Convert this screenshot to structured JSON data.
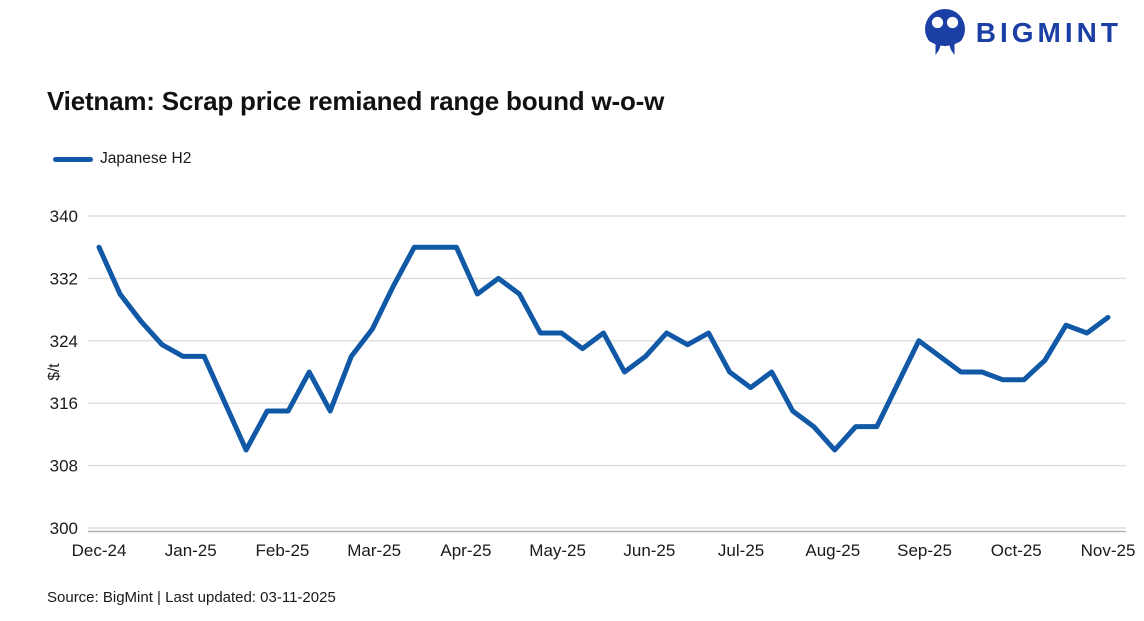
{
  "brand": {
    "name": "BIGMINT",
    "color": "#1b3fa5"
  },
  "header": {
    "title": "Vietnam: Scrap price remianed range bound w-o-w"
  },
  "legend": {
    "label": "Japanese H2"
  },
  "footer": {
    "source_note": "Source: BigMint | Last updated: 03-11-2025"
  },
  "chart_data": {
    "type": "line",
    "title": "Vietnam: Scrap price remianed range bound w-o-w",
    "ylabel": "$/t",
    "xlabel": "",
    "ylim": [
      300,
      340
    ],
    "yticks": [
      340,
      332,
      324,
      316,
      308,
      300
    ],
    "x_tick_labels": [
      "Dec-24",
      "Jan-25",
      "Feb-25",
      "Mar-25",
      "Apr-25",
      "May-25",
      "Jun-25",
      "Jul-25",
      "Aug-25",
      "Sep-25",
      "Oct-25",
      "Nov-25"
    ],
    "grid": "horizontal",
    "grid_color": "#dcdcdc",
    "axis_color": "#b3b3b3",
    "text_color": "#1a1a1a",
    "legend_position": "top-left",
    "series": [
      {
        "name": "Japanese H2",
        "color": "#1159a6",
        "frequency": "weekly",
        "values": [
          336,
          330,
          326.5,
          323.5,
          322,
          322,
          316,
          310,
          315,
          315,
          320,
          315,
          322,
          325.5,
          331,
          336,
          336,
          336,
          330,
          332,
          330,
          325,
          325,
          323,
          325,
          320,
          322,
          325,
          323.5,
          325,
          320,
          318,
          320,
          315,
          313,
          310,
          313,
          313,
          318.5,
          324,
          322,
          320,
          320,
          319,
          319,
          321.5,
          326,
          325,
          327
        ]
      }
    ]
  }
}
